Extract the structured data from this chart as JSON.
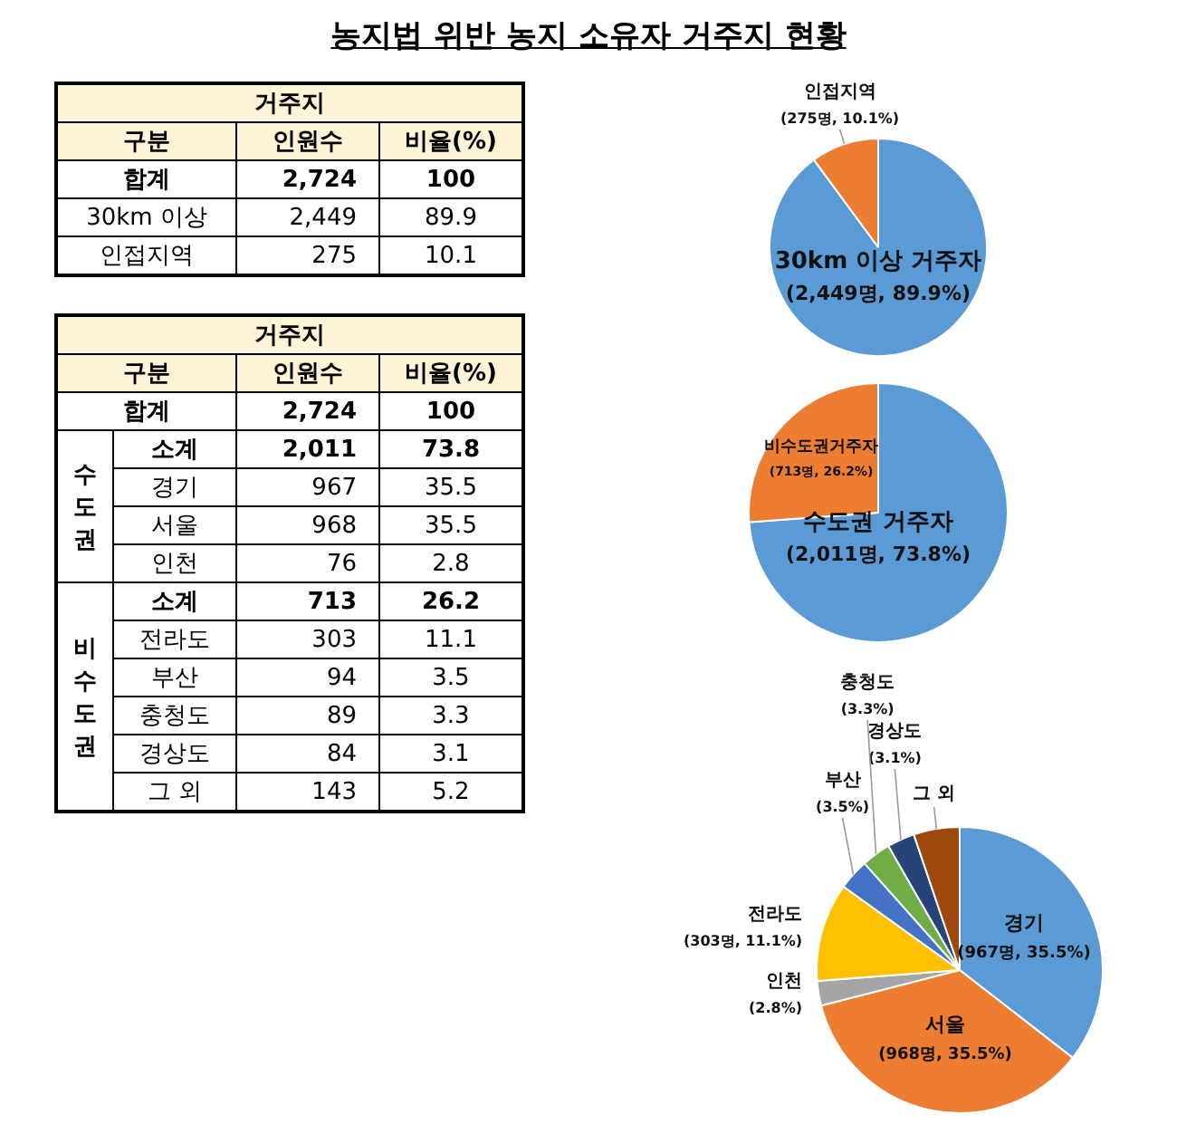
{
  "chart_data": [
    {
      "type": "other",
      "title": "농지법 위반 농지 소유자 거주지 현황"
    },
    {
      "type": "other",
      "annotations": [
        "거주지",
        "구분",
        "인원수",
        "비율(%)",
        "합계",
        "2,724",
        "100",
        "30km 이상",
        "2,449",
        "89.9",
        "인접지역",
        "275",
        "10.1"
      ]
    },
    {
      "type": "pie",
      "categories": [
        "30km 이상 거주자",
        "인접지역"
      ],
      "values": [
        2449,
        275
      ],
      "colors": [
        "#5b9bd5",
        "#ed7d31"
      ],
      "value_labels": [
        "(2,449명, 89.9%)",
        "(275명, 10.1%)"
      ]
    },
    {
      "type": "other",
      "annotations": [
        "거주지",
        "구분",
        "인원수",
        "비율(%)",
        "합계",
        "2,724",
        "100",
        "수도권",
        "소계",
        "2,011",
        "73.8",
        "경기",
        "967",
        "35.5",
        "서울",
        "968",
        "35.5",
        "인천",
        "76",
        "2.8",
        "비수도권",
        "소계",
        "713",
        "26.2",
        "전라도",
        "303",
        "11.1",
        "부산",
        "94",
        "3.5",
        "충청도",
        "89",
        "3.3",
        "경상도",
        "84",
        "3.1",
        "그 외",
        "143",
        "5.2"
      ]
    },
    {
      "type": "pie",
      "categories": [
        "수도권 거주자",
        "비수도권거주자"
      ],
      "values": [
        2011,
        713
      ],
      "colors": [
        "#5b9bd5",
        "#ed7d31"
      ],
      "value_labels": [
        "(2,011명, 73.8%)",
        "(713명, 26.2%)"
      ]
    },
    {
      "type": "pie",
      "categories": [
        "경기",
        "서울",
        "인천",
        "전라도",
        "부산",
        "충청도",
        "경상도",
        "그 외"
      ],
      "values": [
        35.5,
        35.5,
        2.8,
        11.1,
        3.5,
        3.3,
        3.1,
        5.2
      ],
      "colors": [
        "#5b9bd5",
        "#ed7d31",
        "#a5a5a5",
        "#ffc000",
        "#4472c4",
        "#70ad47",
        "#264478",
        "#9e480e"
      ],
      "value_labels": [
        "(967명, 35.5%)",
        "(968명, 35.5%)",
        "(2.8%)",
        "(303명, 11.1%)",
        "(3.5%)",
        "(3.3%)",
        "(3.1%)",
        null
      ]
    }
  ]
}
